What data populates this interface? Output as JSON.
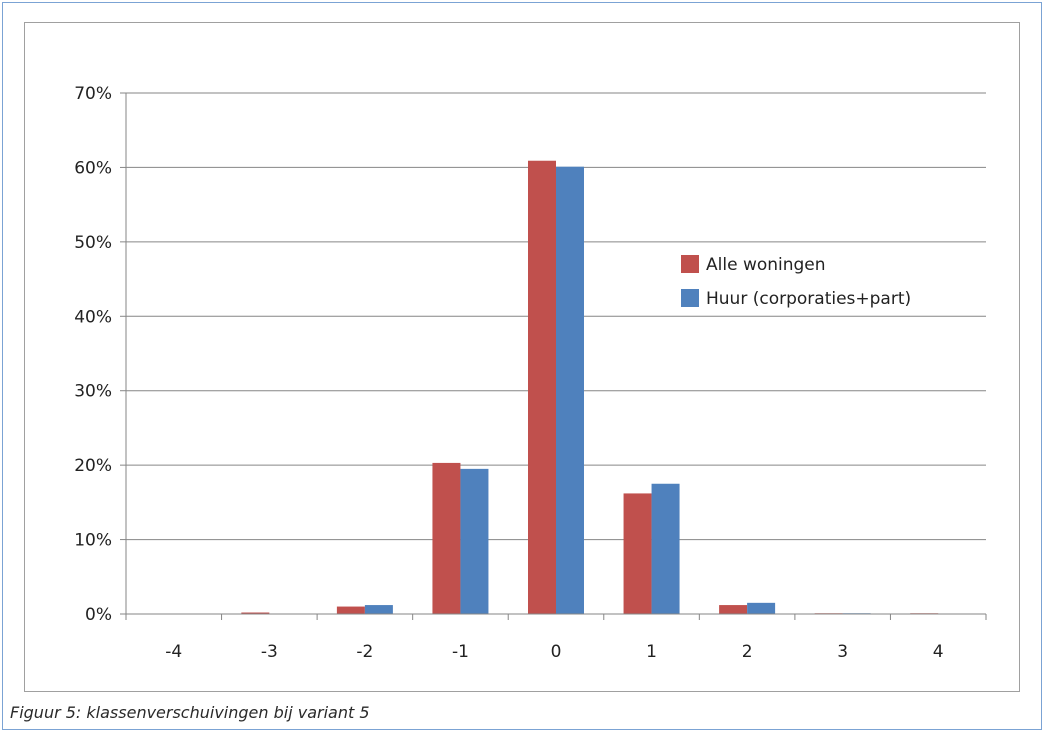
{
  "caption": "Figuur 5: klassenverschuivingen bij variant 5",
  "colors": {
    "series1": "#c0504d",
    "series2": "#4f81bd",
    "grid": "#868686"
  },
  "chart_data": {
    "type": "bar",
    "categories": [
      "-4",
      "-3",
      "-2",
      "-1",
      "0",
      "1",
      "2",
      "3",
      "4"
    ],
    "series": [
      {
        "name": "Alle woningen",
        "values": [
          0.0,
          0.2,
          1.0,
          20.3,
          60.9,
          16.2,
          1.2,
          0.1,
          0.1
        ]
      },
      {
        "name": "Huur (corporaties+part)",
        "values": [
          0.0,
          0.0,
          1.2,
          19.5,
          60.1,
          17.5,
          1.5,
          0.1,
          0.0
        ]
      }
    ],
    "yticks": [
      "0%",
      "10%",
      "20%",
      "30%",
      "40%",
      "50%",
      "60%",
      "70%"
    ],
    "ylim": [
      0,
      70
    ],
    "grid": true,
    "legend_position": "right"
  }
}
